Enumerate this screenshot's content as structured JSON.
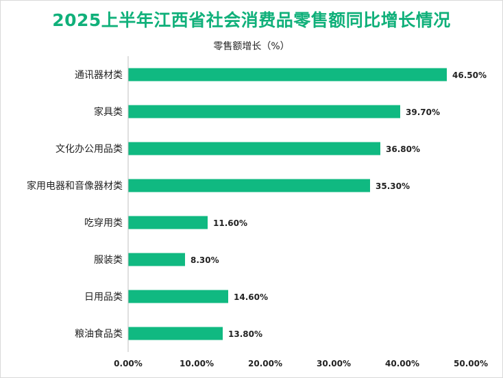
{
  "chart_data": {
    "type": "bar",
    "orientation": "horizontal",
    "title": "2025上半年江西省社会消费品零售额同比增长情况",
    "legend_label": "零售额增长（%）",
    "categories": [
      "通讯器材类",
      "家具类",
      "文化办公用品类",
      "家用电器和音像器材类",
      "吃穿用类",
      "服装类",
      "日用品类",
      "粮油食品类"
    ],
    "values": [
      46.5,
      39.7,
      36.8,
      35.3,
      11.6,
      8.3,
      14.6,
      13.8
    ],
    "value_labels": [
      "46.50%",
      "39.70%",
      "36.80%",
      "35.30%",
      "11.60%",
      "8.30%",
      "14.60%",
      "13.80%"
    ],
    "xlim": [
      0,
      50
    ],
    "ticks": [
      0,
      10,
      20,
      30,
      40,
      50
    ],
    "tick_labels": [
      "0.00%",
      "10.00%",
      "20.00%",
      "30.00%",
      "40.00%",
      "50.00%"
    ],
    "bar_color": "#10b981",
    "title_color": "#10b07a",
    "grid": false
  }
}
